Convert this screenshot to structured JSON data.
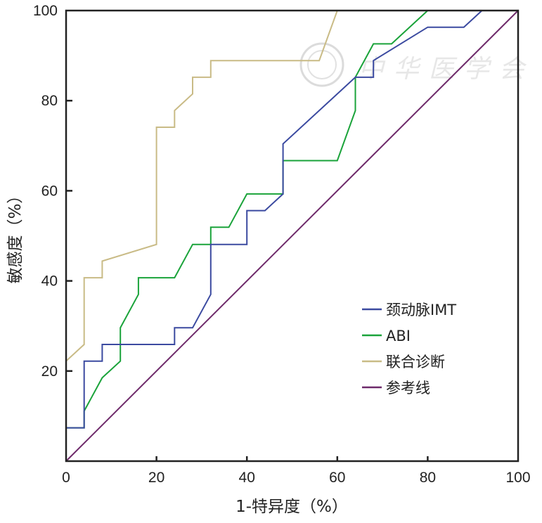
{
  "chart_data": {
    "type": "line",
    "title": "",
    "xlabel": "1-特异度（%）",
    "ylabel": "敏感度（%）",
    "xlim": [
      0,
      100
    ],
    "ylim": [
      0,
      100
    ],
    "xticks": [
      "0",
      "20",
      "40",
      "60",
      "80",
      "100"
    ],
    "yticks": [
      "20",
      "40",
      "60",
      "80",
      "100"
    ],
    "grid": false,
    "legend_position": "bottom-right",
    "series": [
      {
        "name": "颈动脉IMT",
        "color": "#3b4aa0",
        "x": [
          0,
          4,
          4,
          8,
          8,
          24,
          24,
          28,
          32,
          32,
          40,
          40,
          44,
          48,
          48,
          64,
          68,
          68,
          80,
          88,
          92,
          100
        ],
        "y": [
          7.4,
          7.4,
          22.2,
          22.2,
          25.9,
          25.9,
          29.6,
          29.6,
          37,
          48.1,
          48.1,
          55.6,
          55.6,
          59.3,
          70.4,
          85.2,
          85.2,
          88.9,
          96.3,
          96.3,
          100,
          100
        ]
      },
      {
        "name": "ABI",
        "color": "#1aa33a",
        "x": [
          0,
          4,
          4,
          8,
          12,
          12,
          16,
          16,
          24,
          28,
          32,
          32,
          36,
          40,
          48,
          48,
          60,
          64,
          64,
          68,
          72,
          80,
          100
        ],
        "y": [
          7.4,
          7.4,
          11.1,
          18.5,
          22.2,
          29.6,
          37,
          40.7,
          40.7,
          48.1,
          48.1,
          51.9,
          51.9,
          59.3,
          59.3,
          66.7,
          66.7,
          77.8,
          85.2,
          92.6,
          92.6,
          100,
          100
        ]
      },
      {
        "name": "联合诊断",
        "color": "#c9bb86",
        "x": [
          0,
          4,
          4,
          8,
          8,
          20,
          20,
          24,
          24,
          28,
          28,
          32,
          32,
          56,
          60,
          100
        ],
        "y": [
          22.2,
          25.9,
          40.7,
          40.7,
          44.4,
          48.1,
          74.1,
          74.1,
          77.8,
          81.5,
          85.2,
          85.2,
          88.9,
          88.9,
          100,
          100
        ]
      },
      {
        "name": "参考线",
        "color": "#6e2a6a",
        "x": [
          0,
          100
        ],
        "y": [
          0,
          100
        ]
      }
    ],
    "watermark": "中华医学会"
  }
}
